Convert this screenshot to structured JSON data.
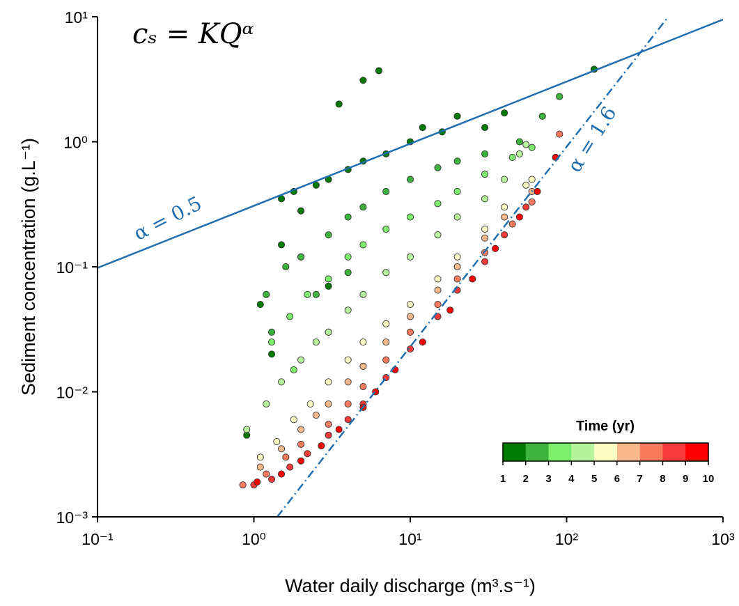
{
  "chart_data": {
    "type": "scatter",
    "equation": "cₛ = KQᵅ",
    "xlabel": "Water daily discharge (m³.s⁻¹)",
    "ylabel": "Sediment concentration (g.L⁻¹)",
    "log_x": true,
    "log_y": true,
    "xlim": [
      0.1,
      1000
    ],
    "ylim": [
      0.001,
      10
    ],
    "xticks": [
      {
        "value": 0.1,
        "label": "10⁻¹"
      },
      {
        "value": 1,
        "label": "10⁰"
      },
      {
        "value": 10,
        "label": "10¹"
      },
      {
        "value": 100,
        "label": "10²"
      },
      {
        "value": 1000,
        "label": "10³"
      }
    ],
    "yticks": [
      {
        "value": 0.001,
        "label": "10⁻³"
      },
      {
        "value": 0.01,
        "label": "10⁻²"
      },
      {
        "value": 0.1,
        "label": "10⁻¹"
      },
      {
        "value": 1,
        "label": "10⁰"
      },
      {
        "value": 10,
        "label": "10¹"
      }
    ],
    "lines": [
      {
        "label": "α = 0.5",
        "color": "#1f6fb0",
        "dash": "solid",
        "x": [
          0.1,
          1000
        ],
        "values": [
          0.098,
          9.5
        ]
      },
      {
        "label": "α = 1.6",
        "color": "#1f6fb0",
        "dash": "dashdot",
        "x": [
          1.41,
          447
        ],
        "values": [
          0.001,
          10
        ]
      }
    ],
    "colorbar": {
      "title": "Time (yr)",
      "ticks": [
        1,
        2,
        3,
        4,
        5,
        6,
        7,
        8,
        9,
        10
      ],
      "colors": [
        "#007a00",
        "#3cb33c",
        "#7cf06c",
        "#b6f39a",
        "#fdfdc4",
        "#f7b98c",
        "#fa7a5e",
        "#f53a3a",
        "#ff0000"
      ]
    },
    "series": [
      {
        "color": "#007a00",
        "x": [
          1.5,
          1.8,
          2,
          2.5,
          3,
          3.5,
          4,
          5,
          6.3,
          5,
          7,
          10,
          12,
          16,
          20,
          30,
          40,
          150,
          1.1,
          1.5,
          2,
          3,
          1.3,
          0.9
        ],
        "values": [
          0.35,
          0.4,
          0.28,
          0.45,
          0.5,
          2.0,
          0.6,
          3.1,
          3.7,
          0.7,
          0.8,
          1.0,
          1.3,
          1.2,
          1.6,
          1.3,
          1.7,
          3.8,
          0.05,
          0.15,
          0.12,
          0.07,
          0.02,
          0.0045
        ]
      },
      {
        "color": "#3cb33c",
        "x": [
          1.2,
          1.6,
          2,
          3,
          4,
          5,
          7,
          10,
          15,
          20,
          30,
          50,
          70,
          90,
          1.3,
          2.5,
          4
        ],
        "values": [
          0.06,
          0.1,
          0.12,
          0.18,
          0.25,
          0.3,
          0.4,
          0.5,
          0.62,
          0.7,
          0.8,
          1.0,
          1.6,
          2.3,
          0.03,
          0.06,
          0.09
        ]
      },
      {
        "color": "#7cf06c",
        "x": [
          1.3,
          1.7,
          2.2,
          3,
          4,
          5,
          7,
          10,
          15,
          20,
          30,
          45,
          60,
          1.8,
          3
        ],
        "values": [
          0.025,
          0.04,
          0.06,
          0.08,
          0.12,
          0.15,
          0.2,
          0.25,
          0.32,
          0.4,
          0.55,
          0.75,
          0.9,
          0.015,
          0.03
        ]
      },
      {
        "color": "#b6f39a",
        "x": [
          0.9,
          1.2,
          1.5,
          2,
          2.5,
          3,
          4,
          5,
          7,
          10,
          15,
          20,
          30,
          40,
          50,
          55
        ],
        "values": [
          0.005,
          0.008,
          0.012,
          0.018,
          0.025,
          0.03,
          0.045,
          0.06,
          0.09,
          0.12,
          0.18,
          0.25,
          0.35,
          0.5,
          0.8,
          0.95
        ]
      },
      {
        "color": "#fdfdc4",
        "x": [
          1.1,
          1.4,
          1.8,
          2.3,
          3,
          4,
          5,
          7,
          10,
          15,
          20,
          30,
          40,
          55,
          60
        ],
        "values": [
          0.003,
          0.004,
          0.006,
          0.008,
          0.012,
          0.018,
          0.025,
          0.035,
          0.05,
          0.08,
          0.12,
          0.2,
          0.3,
          0.45,
          0.5
        ]
      },
      {
        "color": "#f7b98c",
        "x": [
          1.1,
          1.5,
          2,
          2.5,
          3,
          4,
          5,
          7,
          10,
          15,
          20,
          30,
          40,
          60
        ],
        "values": [
          0.0025,
          0.0035,
          0.005,
          0.0065,
          0.008,
          0.012,
          0.016,
          0.025,
          0.04,
          0.065,
          0.1,
          0.17,
          0.25,
          0.4
        ]
      },
      {
        "color": "#fa7a5e",
        "x": [
          0.85,
          1.2,
          1.6,
          2,
          3,
          4,
          5,
          7,
          10,
          15,
          20,
          30,
          45,
          60,
          90
        ],
        "values": [
          0.0018,
          0.0022,
          0.003,
          0.0038,
          0.0055,
          0.008,
          0.011,
          0.018,
          0.03,
          0.05,
          0.08,
          0.13,
          0.22,
          0.33,
          1.15
        ]
      },
      {
        "color": "#f53a3a",
        "x": [
          1,
          1.3,
          1.7,
          2.2,
          3,
          4,
          5,
          7,
          10,
          15,
          20,
          30,
          40,
          55
        ],
        "values": [
          0.0018,
          0.002,
          0.0025,
          0.0032,
          0.0045,
          0.006,
          0.008,
          0.013,
          0.022,
          0.04,
          0.065,
          0.11,
          0.18,
          0.3
        ]
      },
      {
        "color": "#ff0000",
        "x": [
          1.05,
          1.5,
          2,
          2.7,
          3.5,
          5,
          6,
          8,
          12,
          18,
          25,
          35,
          50,
          65,
          85
        ],
        "values": [
          0.0019,
          0.0022,
          0.0028,
          0.0037,
          0.005,
          0.0075,
          0.01,
          0.015,
          0.025,
          0.045,
          0.08,
          0.14,
          0.25,
          0.4,
          0.75
        ]
      }
    ]
  }
}
